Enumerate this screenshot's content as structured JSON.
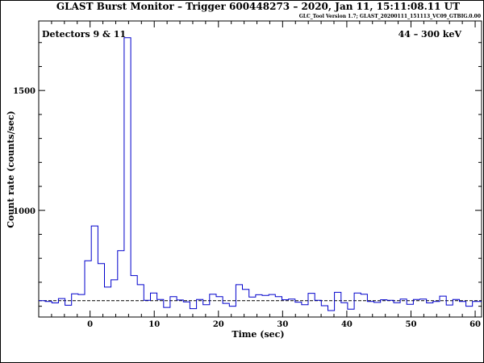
{
  "chart_data": {
    "type": "line",
    "title": "GLAST Burst Monitor  –  Trigger 600448273  –  2020, Jan 11, 15:11:08.11 UT",
    "subtitle": "GLC_Tool Version 1.7; GLAST_20200111_151113_VC09_GTBIG.0.00",
    "xlabel": "Time (sec)",
    "ylabel": "Count rate (counts/sec)",
    "left_annotation": "Detectors 9 & 11",
    "right_annotation": "44 – 300 keV",
    "xlim": [
      -8,
      61
    ],
    "ylim": [
      555,
      1790
    ],
    "x_ticks": [
      0,
      10,
      20,
      30,
      40,
      50,
      60
    ],
    "x_tick_labels": [
      "0",
      "10",
      "20",
      "30",
      "40",
      "50",
      "60"
    ],
    "y_ticks": [
      1000,
      1500
    ],
    "y_tick_labels": [
      "1000",
      "1500"
    ],
    "background_level": 623,
    "bin_width": 1.024,
    "series": [
      {
        "style": "histogram",
        "color": "#0000cc",
        "bin_edges": [
          -8.0,
          -6.98,
          -5.95,
          -4.93,
          -3.9,
          -2.88,
          -1.86,
          -0.83,
          0.19,
          1.22,
          2.24,
          3.26,
          4.29,
          5.31,
          6.34,
          7.36,
          8.38,
          9.41,
          10.43,
          11.46,
          12.48,
          13.5,
          14.53,
          15.55,
          16.58,
          17.6,
          18.62,
          19.65,
          20.67,
          21.7,
          22.72,
          23.74,
          24.77,
          25.79,
          26.82,
          27.84,
          28.86,
          29.89,
          30.91,
          31.94,
          32.96,
          33.98,
          35.01,
          36.03,
          37.06,
          38.08,
          39.1,
          40.13,
          41.15,
          42.18,
          43.2,
          44.22,
          45.25,
          46.27,
          47.3,
          48.32,
          49.34,
          50.37,
          51.39,
          52.42,
          53.44,
          54.46,
          55.49,
          56.51,
          57.54,
          58.56,
          59.58,
          61.0
        ],
        "values": [
          623,
          620,
          614,
          632,
          604,
          652,
          649,
          790,
          935,
          778,
          680,
          710,
          832,
          1720,
          728,
          690,
          625,
          655,
          628,
          595,
          640,
          626,
          618,
          590,
          628,
          606,
          650,
          640,
          612,
          600,
          690,
          670,
          638,
          648,
          645,
          649,
          640,
          627,
          630,
          617,
          606,
          654,
          625,
          602,
          582,
          658,
          615,
          588,
          655,
          650,
          620,
          616,
          627,
          625,
          615,
          630,
          608,
          628,
          630,
          614,
          620,
          642,
          605,
          628,
          620,
          600,
          620
        ]
      }
    ]
  }
}
